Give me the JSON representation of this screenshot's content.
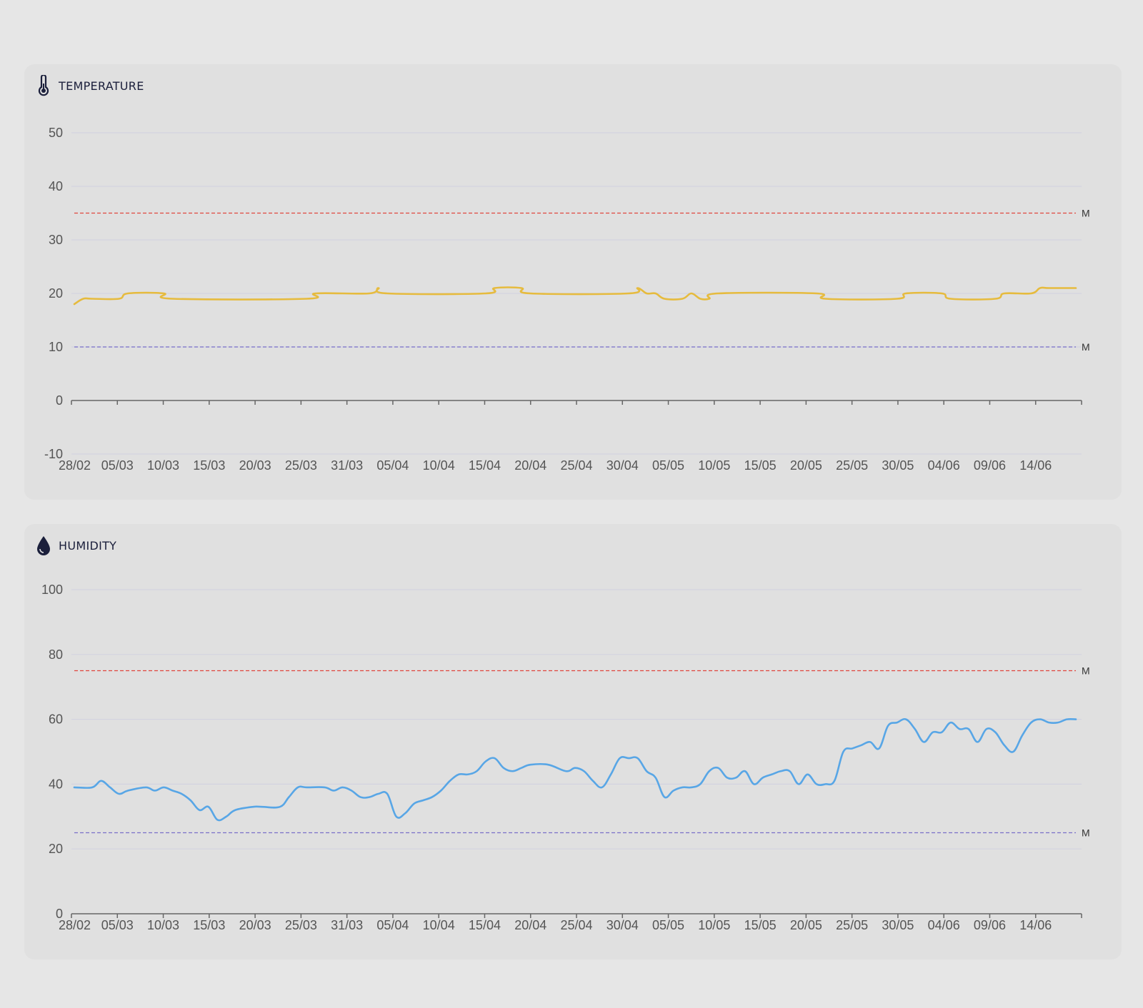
{
  "colors": {
    "background": "#e6e6e6",
    "card": "#e0e0e0",
    "temperature_line": "#e6bb3e",
    "humidity_line": "#58a6e6",
    "max_threshold": "#e0463c",
    "min_threshold": "#7a6fc8",
    "grid": "#d3d3e0",
    "axis": "#666666",
    "title": "#1b1f3b"
  },
  "cards": {
    "temperature": {
      "title": "TEMPERATURE",
      "icon": "thermometer-icon"
    },
    "humidity": {
      "title": "HUMIDITY",
      "icon": "water-drop-icon"
    }
  },
  "chart_data": [
    {
      "type": "line",
      "title": "TEMPERATURE",
      "ylim": [
        -10,
        50
      ],
      "yticks": [
        50,
        40,
        30,
        20,
        10,
        0,
        -10
      ],
      "xlim": [
        "2025-02-28",
        "2025-06-20"
      ],
      "x_tick_labels": [
        "28/02",
        "05/03",
        "10/03",
        "15/03",
        "20/03",
        "25/03",
        "31/03",
        "05/04",
        "10/04",
        "15/04",
        "20/04",
        "25/04",
        "30/04",
        "05/05",
        "10/05",
        "15/05",
        "20/05",
        "25/05",
        "30/05",
        "04/06",
        "09/06",
        "14/06"
      ],
      "grid": true,
      "thresholds": [
        {
          "label": "M",
          "value": 35,
          "color": "#e0463c"
        },
        {
          "label": "M",
          "value": 10,
          "color": "#7a6fc8"
        }
      ],
      "series": [
        {
          "color": "#e6bb3e",
          "x": [
            "2025-02-28",
            "2025-03-01",
            "2025-03-02",
            "2025-03-05",
            "2025-03-06",
            "2025-03-10",
            "2025-03-11",
            "2025-03-26",
            "2025-03-27",
            "2025-04-02",
            "2025-04-03",
            "2025-04-04",
            "2025-04-15",
            "2025-04-16",
            "2025-04-19",
            "2025-04-20",
            "2025-05-01",
            "2025-05-02",
            "2025-05-03",
            "2025-05-04",
            "2025-05-05",
            "2025-05-07",
            "2025-05-08",
            "2025-05-09",
            "2025-05-10",
            "2025-05-11",
            "2025-05-22",
            "2025-05-23",
            "2025-05-31",
            "2025-06-01",
            "2025-06-05",
            "2025-06-06",
            "2025-06-11",
            "2025-06-12",
            "2025-06-15",
            "2025-06-16",
            "2025-06-17",
            "2025-06-20"
          ],
          "y": [
            18,
            19,
            19,
            19,
            20,
            20,
            19,
            19,
            20,
            20,
            21,
            20,
            20,
            21,
            21,
            20,
            20,
            21,
            20,
            20,
            19,
            19,
            20,
            19,
            19,
            20,
            20,
            19,
            19,
            20,
            20,
            19,
            19,
            20,
            20,
            21,
            21,
            21
          ]
        }
      ]
    },
    {
      "type": "line",
      "title": "HUMIDITY",
      "ylim": [
        0,
        100
      ],
      "yticks": [
        100,
        80,
        60,
        40,
        20,
        0
      ],
      "xlim": [
        "2025-02-28",
        "2025-06-20"
      ],
      "x_tick_labels": [
        "28/02",
        "05/03",
        "10/03",
        "15/03",
        "20/03",
        "25/03",
        "31/03",
        "05/04",
        "10/04",
        "15/04",
        "20/04",
        "25/04",
        "30/04",
        "05/05",
        "10/05",
        "15/05",
        "20/05",
        "25/05",
        "30/05",
        "04/06",
        "09/06",
        "14/06"
      ],
      "grid": true,
      "thresholds": [
        {
          "label": "M",
          "value": 75,
          "color": "#e0463c"
        },
        {
          "label": "M",
          "value": 25,
          "color": "#7a6fc8"
        }
      ],
      "series": [
        {
          "color": "#58a6e6",
          "x": [
            "2025-02-28",
            "2025-03-02",
            "2025-03-03",
            "2025-03-04",
            "2025-03-05",
            "2025-03-06",
            "2025-03-08",
            "2025-03-09",
            "2025-03-10",
            "2025-03-11",
            "2025-03-12",
            "2025-03-13",
            "2025-03-14",
            "2025-03-15",
            "2025-03-16",
            "2025-03-17",
            "2025-03-18",
            "2025-03-20",
            "2025-03-21",
            "2025-03-23",
            "2025-03-24",
            "2025-03-25",
            "2025-03-26",
            "2025-03-28",
            "2025-03-29",
            "2025-03-30",
            "2025-03-31",
            "2025-04-01",
            "2025-04-02",
            "2025-04-03",
            "2025-04-04",
            "2025-04-05",
            "2025-04-06",
            "2025-04-07",
            "2025-04-08",
            "2025-04-09",
            "2025-04-10",
            "2025-04-11",
            "2025-04-12",
            "2025-04-13",
            "2025-04-14",
            "2025-04-15",
            "2025-04-16",
            "2025-04-17",
            "2025-04-18",
            "2025-04-19",
            "2025-04-20",
            "2025-04-22",
            "2025-04-24",
            "2025-04-25",
            "2025-04-26",
            "2025-04-27",
            "2025-04-28",
            "2025-04-29",
            "2025-04-30",
            "2025-05-01",
            "2025-05-02",
            "2025-05-03",
            "2025-05-04",
            "2025-05-05",
            "2025-05-06",
            "2025-05-07",
            "2025-05-08",
            "2025-05-09",
            "2025-05-10",
            "2025-05-11",
            "2025-05-12",
            "2025-05-13",
            "2025-05-14",
            "2025-05-15",
            "2025-05-16",
            "2025-05-17",
            "2025-05-18",
            "2025-05-19",
            "2025-05-20",
            "2025-05-21",
            "2025-05-22",
            "2025-05-23",
            "2025-05-24",
            "2025-05-25",
            "2025-05-26",
            "2025-05-27",
            "2025-05-28",
            "2025-05-29",
            "2025-05-30",
            "2025-05-31",
            "2025-06-01",
            "2025-06-02",
            "2025-06-03",
            "2025-06-04",
            "2025-06-05",
            "2025-06-06",
            "2025-06-07",
            "2025-06-08",
            "2025-06-09",
            "2025-06-10",
            "2025-06-11",
            "2025-06-12",
            "2025-06-13",
            "2025-06-14",
            "2025-06-15",
            "2025-06-16",
            "2025-06-17",
            "2025-06-18",
            "2025-06-19",
            "2025-06-20"
          ],
          "y": [
            39,
            39,
            41,
            39,
            37,
            38,
            39,
            38,
            39,
            38,
            37,
            35,
            32,
            33,
            29,
            30,
            32,
            33,
            33,
            33,
            36,
            39,
            39,
            39,
            38,
            39,
            38,
            36,
            36,
            37,
            37,
            30,
            31,
            34,
            35,
            36,
            38,
            41,
            43,
            43,
            44,
            47,
            48,
            45,
            44,
            45,
            46,
            46,
            44,
            45,
            44,
            41,
            39,
            43,
            48,
            48,
            48,
            44,
            42,
            36,
            38,
            39,
            39,
            40,
            44,
            45,
            42,
            42,
            44,
            40,
            42,
            43,
            44,
            44,
            40,
            43,
            40,
            40,
            41,
            50,
            51,
            52,
            53,
            51,
            58,
            59,
            60,
            57,
            53,
            56,
            56,
            59,
            57,
            57,
            53,
            57,
            56,
            52,
            50,
            55,
            59,
            60,
            59,
            59,
            60,
            60
          ]
        }
      ]
    }
  ]
}
